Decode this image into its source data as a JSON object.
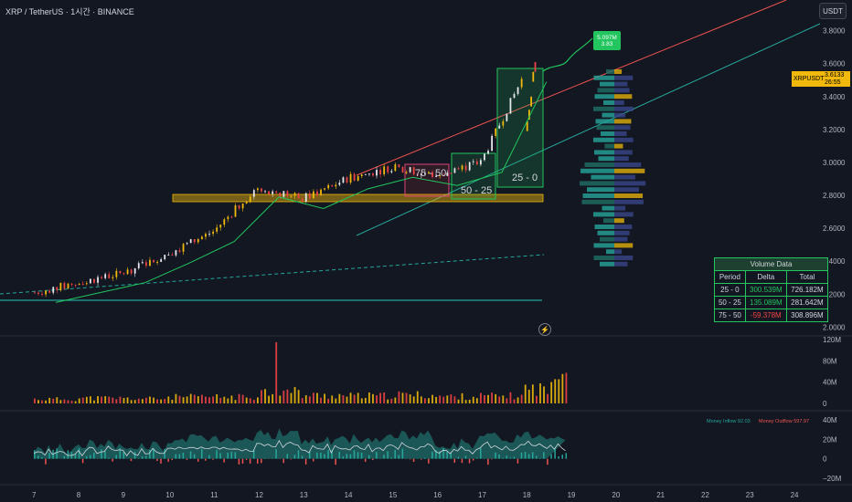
{
  "header": {
    "symbol_line": "XRP / TetherUS · 1시간 · BINANCE",
    "currency_button": "USDT"
  },
  "price_tag": {
    "label": "XRPUSDT",
    "value": "3.6133",
    "countdown": "26:55"
  },
  "target_tag": {
    "line1": "5.097M",
    "line2": "3.83"
  },
  "boxes": {
    "box_75_50": "75 - 50",
    "box_50_25": "50 - 25",
    "box_25_0": "25 - 0"
  },
  "volume_table": {
    "title": "Volume Data",
    "headers": [
      "Period",
      "Delta",
      "Total"
    ],
    "rows": [
      {
        "period": "25 - 0",
        "delta": "300.539M",
        "total": "726.182M",
        "sign": "pos"
      },
      {
        "period": "50 - 25",
        "delta": "135.089M",
        "total": "281.642M",
        "sign": "pos"
      },
      {
        "period": "75 - 50",
        "delta": "-59.378M",
        "total": "308.896M",
        "sign": "neg"
      }
    ]
  },
  "money_flow": {
    "inflow": "Money Inflow 92.03",
    "outflow": "Money Outflow 597.97"
  },
  "colors": {
    "background": "#131722",
    "up": "#f0b90b",
    "down": "#ef4444",
    "bull_alt": "#e5e7eb",
    "green": "#22c55e",
    "teal": "#26a69a",
    "red_channel": "#ef5350"
  },
  "chart_data": [
    {
      "type": "line",
      "title": "XRP / TetherUS · 1시간 · BINANCE",
      "y_tick_labels": [
        "3.8000",
        "3.6000",
        "3.4000",
        "3.2000",
        "3.0000",
        "2.8000",
        "2.6000",
        "2.4000",
        "2.2000",
        "2.0000"
      ],
      "x_tick_labels": [
        "7",
        "8",
        "9",
        "10",
        "11",
        "12",
        "13",
        "14",
        "15",
        "16",
        "17",
        "18",
        "19",
        "20",
        "21",
        "22",
        "23",
        "24"
      ],
      "ylim": [
        1.98,
        3.92
      ],
      "x": [
        "7",
        "8",
        "9",
        "10",
        "11",
        "12",
        "13",
        "14",
        "15",
        "16",
        "17",
        "18"
      ],
      "series": [
        {
          "values": [
            2.21,
            2.27,
            2.33,
            2.45,
            2.58,
            2.85,
            2.78,
            2.9,
            2.97,
            2.92,
            3.0,
            3.55
          ]
        }
      ],
      "last_price": 3.6133,
      "projection_target": 3.83
    },
    {
      "type": "bar",
      "ylabel": "",
      "y_tick_labels": [
        "120M",
        "80M",
        "40M",
        "0"
      ],
      "ylim": [
        0,
        120
      ],
      "categories": [
        "7",
        "8",
        "9",
        "10",
        "11",
        "12",
        "13",
        "14",
        "15",
        "16",
        "17",
        "18"
      ],
      "values": [
        8,
        10,
        9,
        12,
        12,
        22,
        15,
        14,
        16,
        13,
        14,
        28
      ]
    },
    {
      "type": "area",
      "y_tick_labels": [
        "40M",
        "20M",
        "0",
        "−20M"
      ],
      "ylim": [
        -22,
        42
      ],
      "categories": [
        "7",
        "8",
        "9",
        "10",
        "11",
        "12",
        "13",
        "14",
        "15",
        "16",
        "17",
        "18"
      ],
      "values": [
        10,
        15,
        12,
        20,
        22,
        26,
        18,
        20,
        24,
        16,
        22,
        25
      ]
    }
  ]
}
